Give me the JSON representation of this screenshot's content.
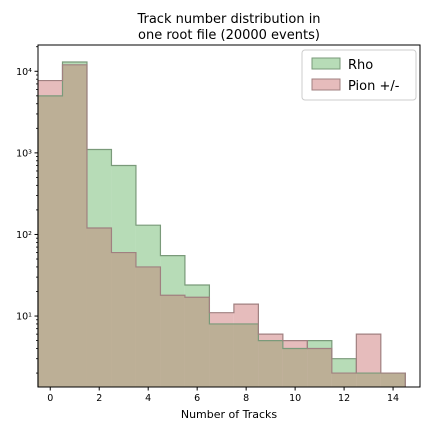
{
  "chart_data": {
    "type": "histogram",
    "title_line1": "Track number distribution in",
    "title_line2": "one root file (20000 events)",
    "xlabel": "Number of Tracks",
    "ylabel": "",
    "xlim": [
      -0.5,
      15.1
    ],
    "ylim": [
      1.35,
      21000
    ],
    "yscale": "log",
    "bin_edges": [
      -0.5,
      0.5,
      1.5,
      2.5,
      3.5,
      4.5,
      5.5,
      6.5,
      7.5,
      8.5,
      9.5,
      10.5,
      11.5,
      12.5,
      13.5,
      14.5
    ],
    "x_ticks": [
      0,
      2,
      4,
      6,
      8,
      10,
      12,
      14
    ],
    "x_tick_labels": [
      "0",
      "2",
      "4",
      "6",
      "8",
      "10",
      "12",
      "14"
    ],
    "y_ticks": [
      10,
      100,
      1000,
      10000
    ],
    "y_tick_labels": [
      "10¹",
      "10²",
      "10³",
      "10⁴"
    ],
    "legend_position": "top-right",
    "series": [
      {
        "name": "Rho",
        "color": "#b7dcb7",
        "edge": "#7a9a7a",
        "values": [
          5000,
          13000,
          1100,
          700,
          130,
          55,
          24,
          8,
          8,
          5,
          4,
          5,
          3,
          2,
          2
        ]
      },
      {
        "name": "Pion +/-",
        "color": "#e6bcbc",
        "edge": "#a08080",
        "values": [
          7700,
          12000,
          120,
          60,
          40,
          18,
          17,
          11,
          14,
          6,
          5,
          4,
          2,
          6,
          2
        ]
      }
    ],
    "overlap_color": "#bcaf96"
  }
}
